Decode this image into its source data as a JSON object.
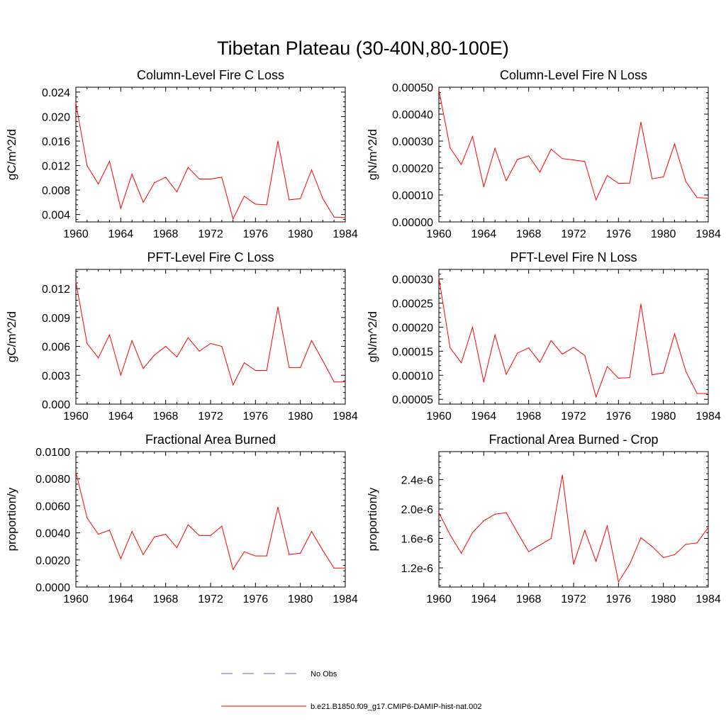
{
  "figure": {
    "title": "Tibetan Plateau (30-40N,80-100E)"
  },
  "colors": {
    "model_line": "#ff0000",
    "obs_line": "#5b6bbf",
    "axis": "#000000"
  },
  "legend": {
    "items": [
      {
        "label": "No Obs",
        "style": "dashed",
        "color": "#5b6bbf"
      },
      {
        "label": "b.e21.B1850.f09_g17.CMIP6-DAMIP-hist-nat.002",
        "style": "solid",
        "color": "#ff0000"
      }
    ]
  },
  "chart_data": [
    {
      "type": "line",
      "title": "Column-Level Fire C Loss",
      "ylabel": "gC/m^2/d",
      "xlim": [
        1960,
        1984
      ],
      "ylim": [
        0.0028,
        0.0248
      ],
      "yticks": [
        0.004,
        0.008,
        0.012,
        0.016,
        0.02,
        0.024
      ],
      "ytick_labels": [
        "0.004",
        "0.008",
        "0.012",
        "0.016",
        "0.020",
        "0.024"
      ],
      "xticks": [
        1960,
        1964,
        1968,
        1972,
        1976,
        1980,
        1984
      ],
      "xtick_labels": [
        "1960",
        "1964",
        "1968",
        "1972",
        "1976",
        "1980",
        "1984"
      ],
      "series": [
        {
          "x": [
            1960,
            1961,
            1962,
            1963,
            1964,
            1965,
            1966,
            1967,
            1968,
            1969,
            1970,
            1971,
            1972,
            1973,
            1974,
            1975,
            1976,
            1977,
            1978,
            1979,
            1980,
            1981,
            1982,
            1983,
            1984
          ],
          "values": [
            0.0222,
            0.012,
            0.009,
            0.0127,
            0.005,
            0.0106,
            0.006,
            0.0092,
            0.0101,
            0.0077,
            0.0117,
            0.0098,
            0.0098,
            0.0101,
            0.0033,
            0.007,
            0.0057,
            0.0056,
            0.016,
            0.0064,
            0.0066,
            0.0113,
            0.0066,
            0.0036,
            0.0035
          ]
        }
      ]
    },
    {
      "type": "line",
      "title": "Column-Level Fire N Loss",
      "ylabel": "gN/m^2/d",
      "xlim": [
        1960,
        1984
      ],
      "ylim": [
        0.0,
        0.0005
      ],
      "yticks": [
        0.0,
        0.0001,
        0.0002,
        0.0003,
        0.0004,
        0.0005
      ],
      "ytick_labels": [
        "0.00000",
        "0.00010",
        "0.00020",
        "0.00030",
        "0.00040",
        "0.00050"
      ],
      "xticks": [
        1960,
        1964,
        1968,
        1972,
        1976,
        1980,
        1984
      ],
      "xtick_labels": [
        "1960",
        "1964",
        "1968",
        "1972",
        "1976",
        "1980",
        "1984"
      ],
      "series": [
        {
          "x": [
            1960,
            1961,
            1962,
            1963,
            1964,
            1965,
            1966,
            1967,
            1968,
            1969,
            1970,
            1971,
            1972,
            1973,
            1974,
            1975,
            1976,
            1977,
            1978,
            1979,
            1980,
            1981,
            1982,
            1983,
            1984
          ],
          "values": [
            0.00049,
            0.000275,
            0.000213,
            0.000317,
            0.00013,
            0.000273,
            0.000153,
            0.000232,
            0.000245,
            0.000185,
            0.00027,
            0.000235,
            0.00023,
            0.000224,
            8.2e-05,
            0.000172,
            0.000143,
            0.000144,
            0.00037,
            0.00016,
            0.000167,
            0.000289,
            0.00015,
            9e-05,
            8.8e-05
          ]
        }
      ]
    },
    {
      "type": "line",
      "title": "PFT-Level Fire C Loss",
      "ylabel": "gC/m^2/d",
      "xlim": [
        1960,
        1984
      ],
      "ylim": [
        0.0,
        0.014
      ],
      "yticks": [
        0.0,
        0.003,
        0.006,
        0.009,
        0.012
      ],
      "ytick_labels": [
        "0.000",
        "0.003",
        "0.006",
        "0.009",
        "0.012"
      ],
      "xticks": [
        1960,
        1964,
        1968,
        1972,
        1976,
        1980,
        1984
      ],
      "xtick_labels": [
        "1960",
        "1964",
        "1968",
        "1972",
        "1976",
        "1980",
        "1984"
      ],
      "series": [
        {
          "x": [
            1960,
            1961,
            1962,
            1963,
            1964,
            1965,
            1966,
            1967,
            1968,
            1969,
            1970,
            1971,
            1972,
            1973,
            1974,
            1975,
            1976,
            1977,
            1978,
            1979,
            1980,
            1981,
            1982,
            1983,
            1984
          ],
          "values": [
            0.0127,
            0.0063,
            0.0048,
            0.0072,
            0.003,
            0.0066,
            0.0037,
            0.0051,
            0.006,
            0.0049,
            0.0069,
            0.0055,
            0.0063,
            0.006,
            0.002,
            0.0043,
            0.0035,
            0.0035,
            0.0101,
            0.0038,
            0.0038,
            0.0066,
            0.0045,
            0.0023,
            0.0023
          ]
        }
      ]
    },
    {
      "type": "line",
      "title": "PFT-Level Fire N Loss",
      "ylabel": "gN/m^2/d",
      "xlim": [
        1960,
        1984
      ],
      "ylim": [
        4e-05,
        0.00032
      ],
      "yticks": [
        5e-05,
        0.0001,
        0.00015,
        0.0002,
        0.00025,
        0.0003
      ],
      "ytick_labels": [
        "0.00005",
        "0.00010",
        "0.00015",
        "0.00020",
        "0.00025",
        "0.00030"
      ],
      "xticks": [
        1960,
        1964,
        1968,
        1972,
        1976,
        1980,
        1984
      ],
      "xtick_labels": [
        "1960",
        "1964",
        "1968",
        "1972",
        "1976",
        "1980",
        "1984"
      ],
      "series": [
        {
          "x": [
            1960,
            1961,
            1962,
            1963,
            1964,
            1965,
            1966,
            1967,
            1968,
            1969,
            1970,
            1971,
            1972,
            1973,
            1974,
            1975,
            1976,
            1977,
            1978,
            1979,
            1980,
            1981,
            1982,
            1983,
            1984
          ],
          "values": [
            0.000303,
            0.000157,
            0.000126,
            0.0002,
            8.6e-05,
            0.000184,
            0.000102,
            0.000146,
            0.000157,
            0.000127,
            0.000172,
            0.000144,
            0.000158,
            0.000141,
            5.5e-05,
            0.000118,
            9.4e-05,
            9.5e-05,
            0.000248,
            0.000101,
            0.000105,
            0.000186,
            0.000108,
            6.2e-05,
            6.2e-05
          ]
        }
      ]
    },
    {
      "type": "line",
      "title": "Fractional Area Burned",
      "ylabel": "proportion/y",
      "xlim": [
        1960,
        1984
      ],
      "ylim": [
        0.0,
        0.01
      ],
      "yticks": [
        0.0,
        0.002,
        0.004,
        0.006,
        0.008,
        0.01
      ],
      "ytick_labels": [
        "0.0000",
        "0.0020",
        "0.0040",
        "0.0060",
        "0.0080",
        "0.0100"
      ],
      "xticks": [
        1960,
        1964,
        1968,
        1972,
        1976,
        1980,
        1984
      ],
      "xtick_labels": [
        "1960",
        "1964",
        "1968",
        "1972",
        "1976",
        "1980",
        "1984"
      ],
      "series": [
        {
          "x": [
            1960,
            1961,
            1962,
            1963,
            1964,
            1965,
            1966,
            1967,
            1968,
            1969,
            1970,
            1971,
            1972,
            1973,
            1974,
            1975,
            1976,
            1977,
            1978,
            1979,
            1980,
            1981,
            1982,
            1983,
            1984
          ],
          "values": [
            0.0085,
            0.0051,
            0.0039,
            0.0042,
            0.0021,
            0.0041,
            0.0024,
            0.0037,
            0.0039,
            0.0029,
            0.0046,
            0.0038,
            0.0038,
            0.0045,
            0.0013,
            0.0026,
            0.0023,
            0.0023,
            0.0059,
            0.0024,
            0.0025,
            0.0041,
            0.0027,
            0.0014,
            0.0014
          ]
        }
      ]
    },
    {
      "type": "line",
      "title": "Fractional Area Burned - Crop",
      "ylabel": "proportion/y",
      "xlim": [
        1960,
        1984
      ],
      "ylim": [
        9.4e-07,
        2.78e-06
      ],
      "yticks": [
        1.2e-06,
        1.6e-06,
        2e-06,
        2.4e-06
      ],
      "ytick_labels": [
        "1.2e-6",
        "1.6e-6",
        "2.0e-6",
        "2.4e-6"
      ],
      "xticks": [
        1960,
        1964,
        1968,
        1972,
        1976,
        1980,
        1984
      ],
      "xtick_labels": [
        "1960",
        "1964",
        "1968",
        "1972",
        "1976",
        "1980",
        "1984"
      ],
      "series": [
        {
          "x": [
            1960,
            1961,
            1962,
            1963,
            1964,
            1965,
            1966,
            1967,
            1968,
            1969,
            1970,
            1971,
            1972,
            1973,
            1974,
            1975,
            1976,
            1977,
            1978,
            1979,
            1980,
            1981,
            1982,
            1983,
            1984
          ],
          "values": [
            1.95e-06,
            1.65e-06,
            1.4e-06,
            1.68e-06,
            1.84e-06,
            1.93e-06,
            1.95e-06,
            1.68e-06,
            1.42e-06,
            1.51e-06,
            1.6e-06,
            2.46e-06,
            1.25e-06,
            1.71e-06,
            1.29e-06,
            1.77e-06,
            1.01e-06,
            1.25e-06,
            1.61e-06,
            1.49e-06,
            1.34e-06,
            1.38e-06,
            1.52e-06,
            1.54e-06,
            1.75e-06
          ]
        }
      ]
    }
  ]
}
